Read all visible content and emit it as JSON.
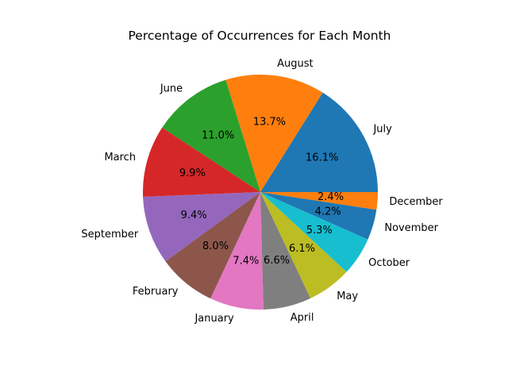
{
  "chart_data": {
    "type": "pie",
    "title": "Percentage of Occurrences for Each Month",
    "categories": [
      "July",
      "August",
      "June",
      "March",
      "September",
      "February",
      "January",
      "April",
      "May",
      "October",
      "November",
      "December"
    ],
    "values": [
      16.1,
      13.7,
      11.0,
      9.9,
      9.4,
      8.0,
      7.4,
      6.6,
      6.1,
      5.3,
      4.2,
      2.4
    ],
    "value_labels": [
      "16.1%",
      "13.7%",
      "11.0%",
      "9.9%",
      "9.4%",
      "8.0%",
      "7.4%",
      "6.6%",
      "6.1%",
      "5.3%",
      "4.2%",
      "2.4%"
    ],
    "colors": [
      "#1f77b4",
      "#ff7f0e",
      "#2ca02c",
      "#d62728",
      "#9467bd",
      "#8c564b",
      "#e377c2",
      "#7f7f7f",
      "#bcbd22",
      "#17becf",
      "#1f77b4",
      "#ff7f0e"
    ],
    "start_angle_deg": 0,
    "direction": "counterclockwise",
    "legend": false
  }
}
